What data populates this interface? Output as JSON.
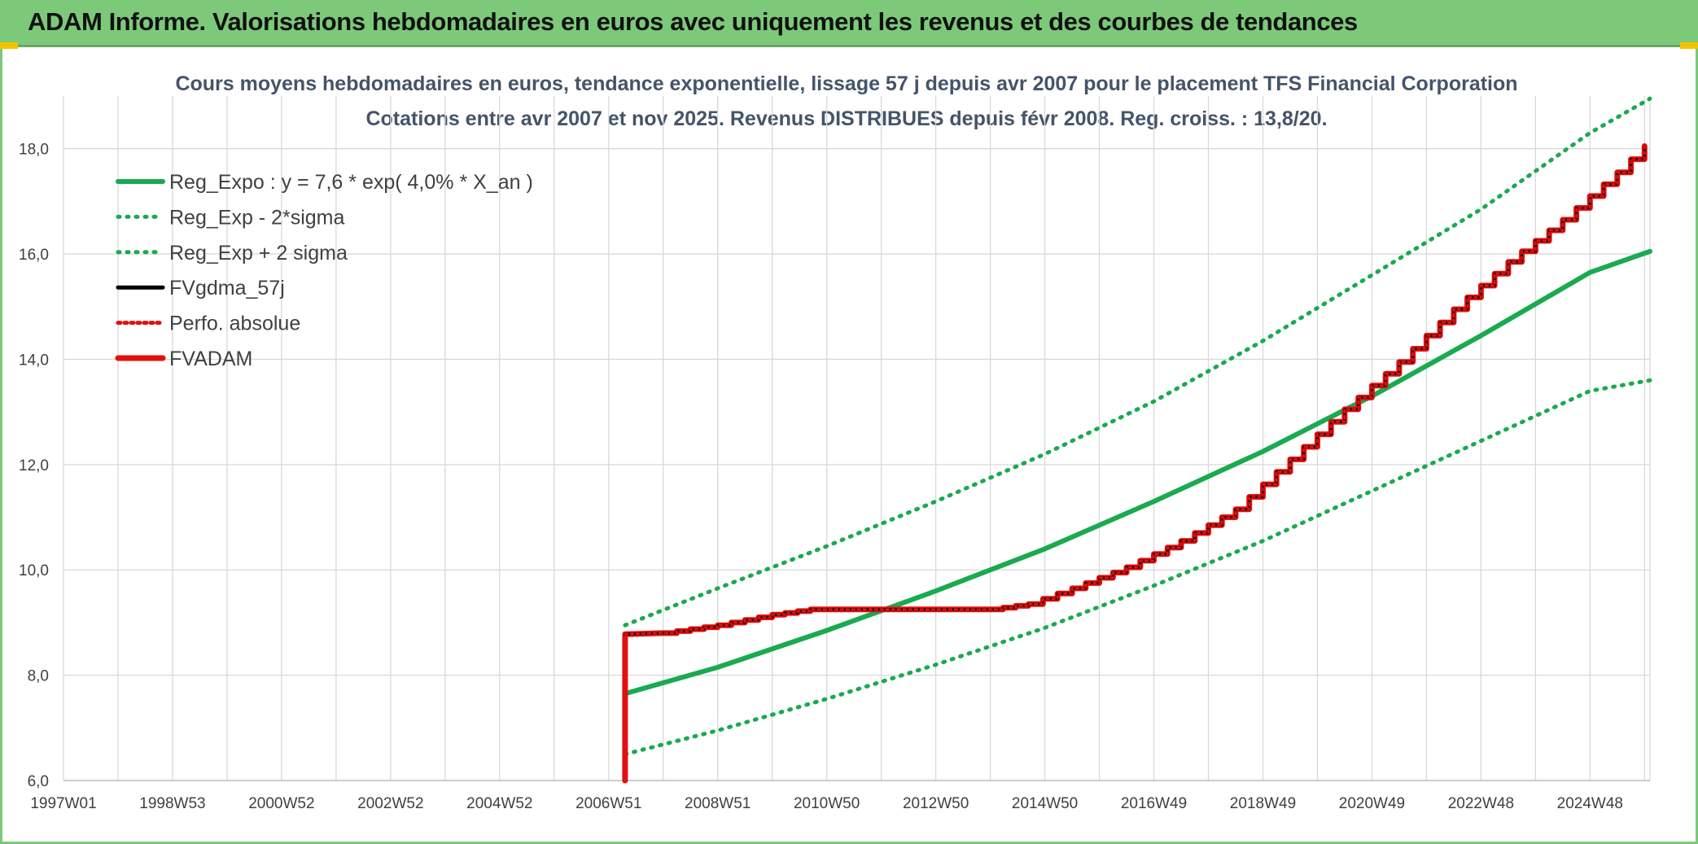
{
  "banner": {
    "title": "ADAM Informe. Valorisations hebdomadaires en euros avec uniquement les revenus et des courbes de tendances"
  },
  "chart_data": {
    "type": "line",
    "title": "Cours moyens hebdomadaires en euros, tendance exponentielle, lissage 57 j depuis avr 2007 pour le placement TFS Financial Corporation",
    "subtitle": "Cotations entre avr 2007 et nov 2025. Revenus DISTRIBUES depuis févr 2008. Reg. croiss. : 13,8/20.",
    "xlabel": "",
    "ylabel": "",
    "x_range": [
      1997.0,
      2026.1
    ],
    "ylim": [
      6.0,
      19.0
    ],
    "y_ticks": [
      6.0,
      8.0,
      10.0,
      12.0,
      14.0,
      16.0,
      18.0
    ],
    "y_tick_labels": [
      "6,0",
      "8,0",
      "10,0",
      "12,0",
      "14,0",
      "16,0",
      "18,0"
    ],
    "x_ticks": [
      1997.0,
      1999.0,
      2001.0,
      2003.0,
      2005.0,
      2007.0,
      2009.0,
      2011.0,
      2013.0,
      2015.0,
      2017.0,
      2019.0,
      2021.0,
      2023.0,
      2025.0
    ],
    "x_tick_labels": [
      "1997W01",
      "1998W53",
      "2000W52",
      "2002W52",
      "2004W52",
      "2006W51",
      "2008W51",
      "2010W50",
      "2012W50",
      "2014W50",
      "2016W49",
      "2018W49",
      "2020W49",
      "2022W48",
      "2024W48"
    ],
    "grid": true,
    "legend_position": "top-left",
    "series": [
      {
        "name": "Reg_Expo : y = 7,6 * exp( 4,0% *  X_an )",
        "color": "#1aaa50",
        "style": "solid",
        "x": [
          2007.3,
          2009,
          2011,
          2013,
          2015,
          2017,
          2019,
          2021,
          2023,
          2025,
          2026.1
        ],
        "values": [
          7.65,
          8.15,
          8.85,
          9.6,
          10.4,
          11.3,
          12.25,
          13.3,
          14.45,
          15.65,
          16.05
        ]
      },
      {
        "name": "Reg_Exp - 2*sigma",
        "color": "#1aaa50",
        "style": "dotted",
        "x": [
          2007.3,
          2009,
          2011,
          2013,
          2015,
          2017,
          2019,
          2021,
          2023,
          2025,
          2026.1
        ],
        "values": [
          6.5,
          6.95,
          7.55,
          8.2,
          8.9,
          9.7,
          10.55,
          11.5,
          12.45,
          13.4,
          13.6
        ]
      },
      {
        "name": "Reg_Exp + 2 sigma",
        "color": "#1aaa50",
        "style": "dotted",
        "x": [
          2007.3,
          2009,
          2011,
          2013,
          2015,
          2017,
          2019,
          2021,
          2023,
          2025,
          2026.1
        ],
        "values": [
          8.95,
          9.65,
          10.45,
          11.3,
          12.2,
          13.2,
          14.35,
          15.6,
          16.85,
          18.3,
          18.95
        ]
      },
      {
        "name": "FVgdma_57j",
        "color": "#000000",
        "style": "solid",
        "x": [
          2007.3,
          2008.0,
          2009.0,
          2010.0,
          2010.7,
          2012.0,
          2013.0,
          2014.0,
          2014.7,
          2015.5,
          2016.5,
          2017.5,
          2018.5,
          2019.5,
          2020.5,
          2021.5,
          2022.5,
          2023.5,
          2024.5,
          2025.5,
          2026.0
        ],
        "values": [
          8.78,
          8.8,
          8.95,
          9.15,
          9.25,
          9.25,
          9.25,
          9.25,
          9.35,
          9.65,
          10.05,
          10.55,
          11.15,
          12.1,
          13.05,
          13.95,
          14.95,
          15.85,
          16.65,
          17.55,
          18.05
        ]
      },
      {
        "name": "Perfo. absolue",
        "color": "#e31010",
        "style": "dotted",
        "x": [
          2007.3,
          2008.0,
          2009.0,
          2010.0,
          2010.7,
          2012.0,
          2013.0,
          2014.0,
          2014.7,
          2015.5,
          2016.5,
          2017.5,
          2018.5,
          2019.5,
          2020.5,
          2021.5,
          2022.5,
          2023.5,
          2024.5,
          2025.5,
          2026.0
        ],
        "values": [
          8.78,
          8.8,
          8.95,
          9.15,
          9.25,
          9.25,
          9.25,
          9.25,
          9.35,
          9.65,
          10.05,
          10.55,
          11.15,
          12.1,
          13.05,
          13.95,
          14.95,
          15.85,
          16.65,
          17.55,
          18.05
        ]
      },
      {
        "name": "FVADAM",
        "color": "#e31010",
        "style": "solid",
        "x": [
          2007.3,
          2007.3,
          2008.0,
          2009.0,
          2010.0,
          2010.7,
          2012.0,
          2013.0,
          2014.0,
          2014.7,
          2015.5,
          2016.5,
          2017.5,
          2018.5,
          2019.5,
          2020.5,
          2021.5,
          2022.5,
          2023.5,
          2024.5,
          2025.5,
          2026.0
        ],
        "values": [
          6.0,
          8.78,
          8.8,
          8.95,
          9.15,
          9.25,
          9.25,
          9.25,
          9.25,
          9.35,
          9.65,
          10.05,
          10.55,
          11.15,
          12.1,
          13.05,
          13.95,
          14.95,
          15.85,
          16.65,
          17.55,
          18.05
        ]
      }
    ]
  }
}
